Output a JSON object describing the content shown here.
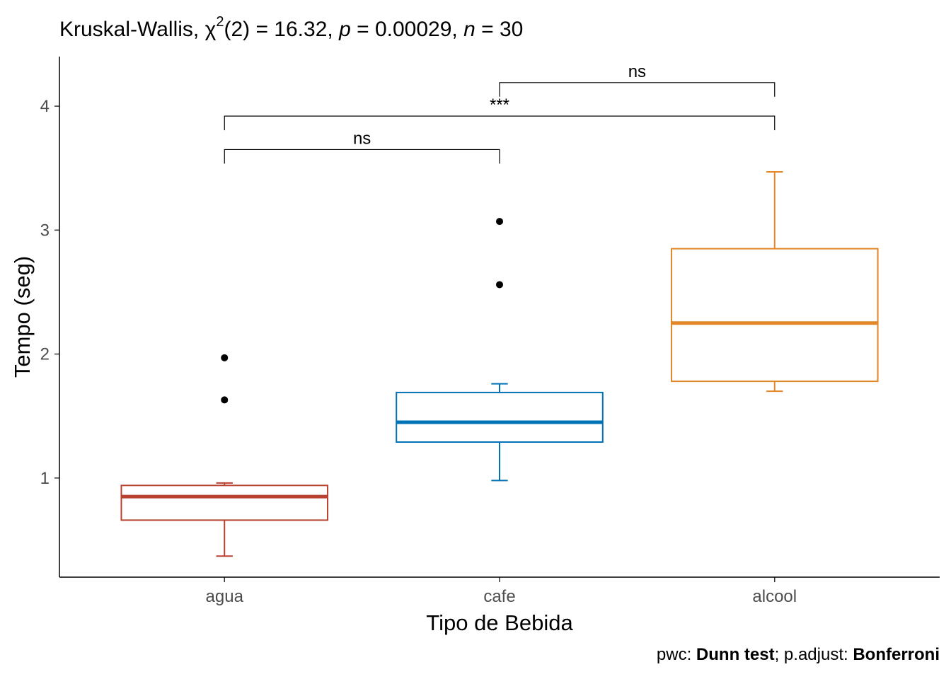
{
  "chart_data": {
    "type": "boxplot",
    "title": {
      "test": "Kruskal-Wallis, ",
      "chi": "χ",
      "chi_sup": "2",
      "stat_rest": "(2) = 16.32, ",
      "p_symbol": "p",
      "p_value": " = 0.00029, ",
      "n_symbol": "n",
      "n_value": " = 30"
    },
    "xlabel": "Tipo de Bebida",
    "ylabel": "Tempo (seg)",
    "ylim": [
      0.2,
      4.4
    ],
    "yticks": [
      1,
      2,
      3,
      4
    ],
    "categories": [
      "agua",
      "cafe",
      "alcool"
    ],
    "colors": [
      "#B84130",
      "#0072B5",
      "#E18727"
    ],
    "boxes": [
      {
        "name": "agua",
        "whisker_low": 0.37,
        "q1": 0.66,
        "median": 0.85,
        "q3": 0.94,
        "whisker_high": 0.96,
        "outliers": [
          1.63,
          1.97
        ]
      },
      {
        "name": "cafe",
        "whisker_low": 0.98,
        "q1": 1.29,
        "median": 1.45,
        "q3": 1.69,
        "whisker_high": 1.76,
        "outliers": [
          2.56,
          3.07
        ]
      },
      {
        "name": "alcool",
        "whisker_low": 1.7,
        "q1": 1.78,
        "median": 2.25,
        "q3": 2.85,
        "whisker_high": 3.47,
        "outliers": []
      }
    ],
    "comparisons": [
      {
        "group1": "agua",
        "group2": "cafe",
        "y": 3.65,
        "label": "ns"
      },
      {
        "group1": "agua",
        "group2": "alcool",
        "y": 3.92,
        "label": "***"
      },
      {
        "group1": "cafe",
        "group2": "alcool",
        "y": 4.19,
        "label": "ns"
      }
    ],
    "caption": {
      "prefix": "pwc: ",
      "test": "Dunn test",
      "middle": "; p.adjust: ",
      "method": "Bonferroni"
    }
  }
}
